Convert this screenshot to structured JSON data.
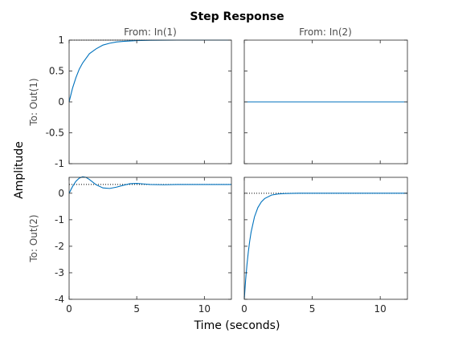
{
  "chart_data": {
    "type": "line",
    "title": "Step Response",
    "xlabel": "Time (seconds)",
    "ylabel": "Amplitude",
    "grid": false,
    "colors": {
      "response": "#0072bd",
      "steady_state": "#000000",
      "frame": "#262626"
    },
    "columns": [
      {
        "label": "From: In(1)"
      },
      {
        "label": "From: In(2)"
      }
    ],
    "rows": [
      {
        "label": "To: Out(1)",
        "ylim": [
          -1,
          1
        ],
        "yticks": [
          "1",
          "0.5",
          "0",
          "-0.5",
          "-1"
        ],
        "ytick_values": [
          1,
          0.5,
          0,
          -0.5,
          -1
        ]
      },
      {
        "label": "To: Out(2)",
        "ylim": [
          -4,
          0.6
        ],
        "yticks": [
          "0",
          "-1",
          "-2",
          "-3",
          "-4"
        ],
        "ytick_values": [
          0,
          -1,
          -2,
          -3,
          -4
        ]
      }
    ],
    "xlim": [
      0,
      12
    ],
    "xticks": [
      "0",
      "5",
      "10"
    ],
    "xtick_values": [
      0,
      5,
      10
    ],
    "panels": [
      {
        "row": 0,
        "col": 0,
        "steady_state": 1,
        "x": [
          0,
          0.25,
          0.5,
          0.75,
          1,
          1.5,
          2,
          2.5,
          3,
          3.5,
          4,
          5,
          6,
          8,
          10,
          12
        ],
        "y": [
          0,
          0.22,
          0.39,
          0.53,
          0.63,
          0.78,
          0.86,
          0.92,
          0.95,
          0.97,
          0.98,
          0.993,
          0.998,
          1,
          1,
          1
        ]
      },
      {
        "row": 0,
        "col": 1,
        "steady_state": 0,
        "x": [
          0,
          12
        ],
        "y": [
          0,
          0
        ]
      },
      {
        "row": 1,
        "col": 0,
        "steady_state": 0.33,
        "x": [
          0,
          0.25,
          0.5,
          0.75,
          1,
          1.25,
          1.5,
          2,
          2.5,
          3,
          3.5,
          4,
          4.5,
          5,
          5.5,
          6,
          7,
          8,
          10,
          12
        ],
        "y": [
          0,
          0.25,
          0.45,
          0.57,
          0.62,
          0.6,
          0.52,
          0.32,
          0.2,
          0.18,
          0.23,
          0.3,
          0.36,
          0.37,
          0.35,
          0.33,
          0.32,
          0.33,
          0.33,
          0.33
        ]
      },
      {
        "row": 1,
        "col": 1,
        "steady_state": 0,
        "x": [
          0,
          0.1,
          0.2,
          0.3,
          0.4,
          0.5,
          0.75,
          1,
          1.25,
          1.5,
          2,
          2.5,
          3,
          4,
          6,
          12
        ],
        "y": [
          -4,
          -3.27,
          -2.68,
          -2.2,
          -1.8,
          -1.47,
          -0.89,
          -0.54,
          -0.33,
          -0.2,
          -0.07,
          -0.027,
          -0.01,
          -0.001,
          0,
          0
        ]
      }
    ]
  }
}
